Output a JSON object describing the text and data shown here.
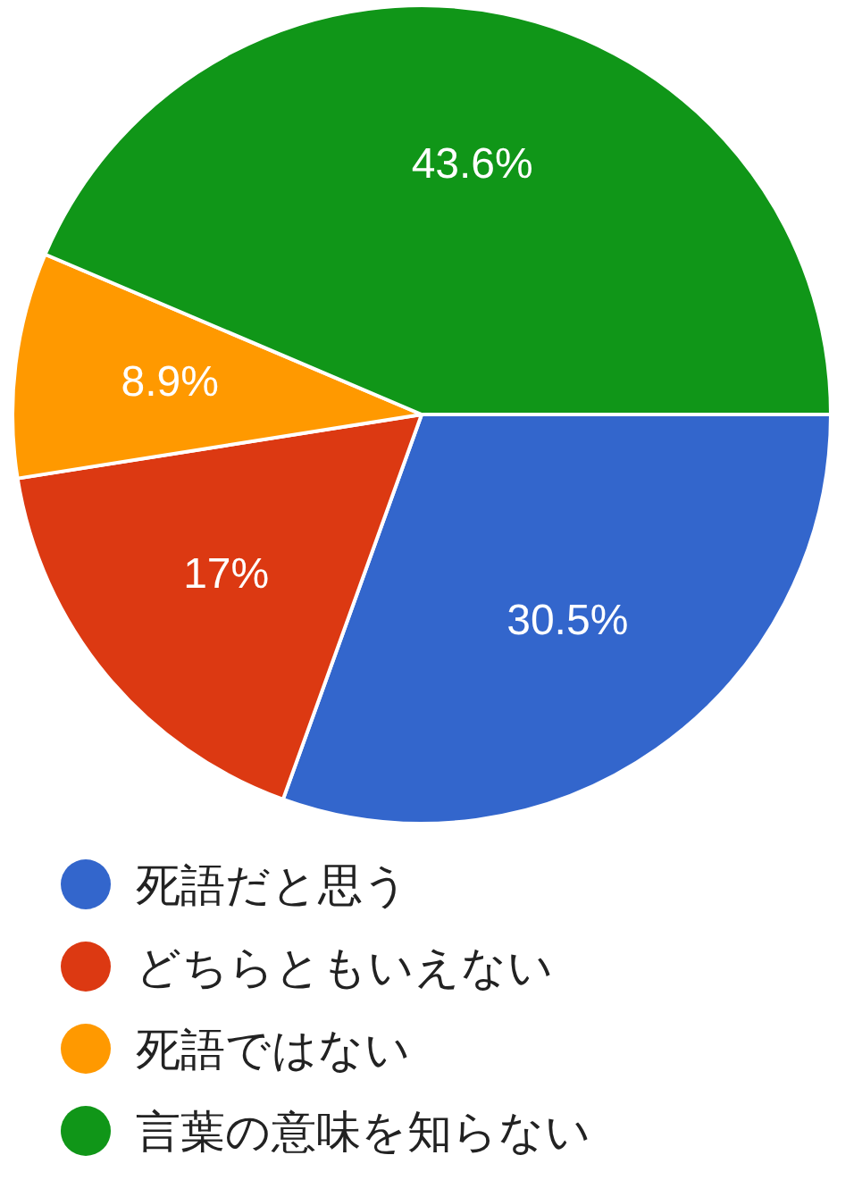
{
  "chart_data": {
    "type": "pie",
    "categories": [
      "死語だと思う",
      "どちらともいえない",
      "死語ではない",
      "言葉の意味を知らない"
    ],
    "values": [
      30.5,
      17,
      8.9,
      43.6
    ],
    "colors": [
      "#3366cc",
      "#dc3912",
      "#ff9900",
      "#109618"
    ],
    "value_labels": [
      "30.5%",
      "17%",
      "8.9%",
      "43.6%"
    ],
    "legend": "bottom"
  }
}
